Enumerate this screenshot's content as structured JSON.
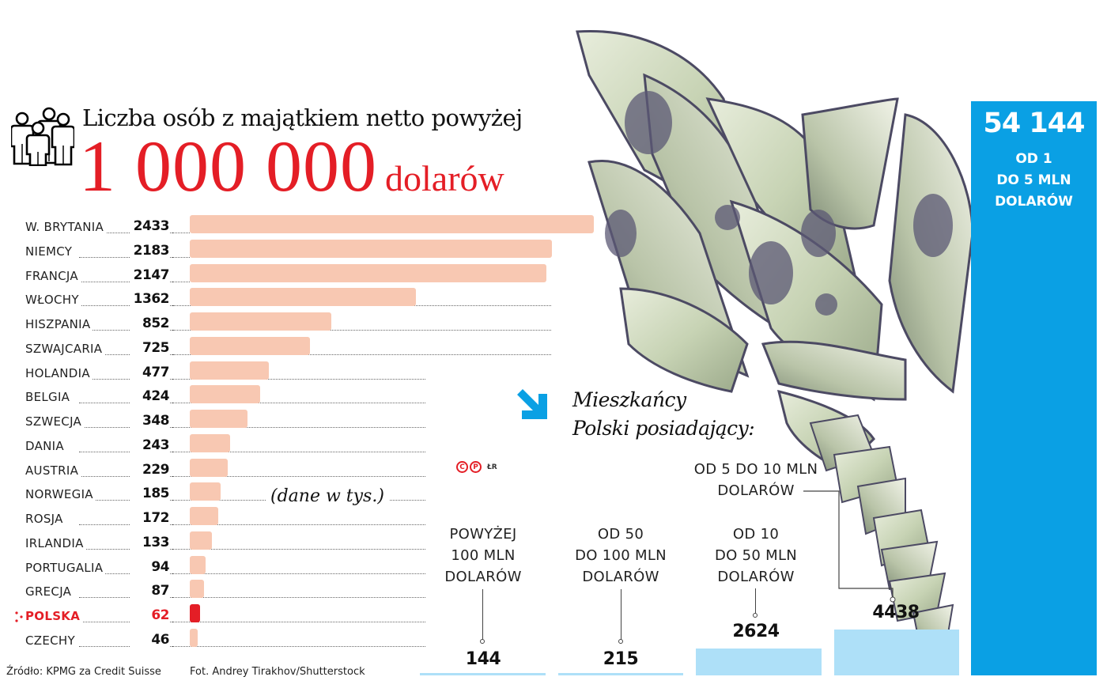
{
  "title": {
    "line1": "Liczba osób z majątkiem netto powyżej",
    "amount": "1 000 000",
    "unit": "dolarów",
    "icon": "people-group-icon"
  },
  "colors": {
    "accent_red": "#e41e26",
    "bar_salmon": "#f8c8b2",
    "blue": "#0aa0e4",
    "light_blue": "#aee0f8"
  },
  "countries": [
    {
      "name": "W. BRYTANIA",
      "value": "2433"
    },
    {
      "name": "NIEMCY",
      "value": "2183"
    },
    {
      "name": "FRANCJA",
      "value": "2147"
    },
    {
      "name": "WŁOCHY",
      "value": "1362"
    },
    {
      "name": "HISZPANIA",
      "value": "852"
    },
    {
      "name": "SZWAJCARIA",
      "value": "725"
    },
    {
      "name": "HOLANDIA",
      "value": "477"
    },
    {
      "name": "BELGIA",
      "value": "424"
    },
    {
      "name": "SZWECJA",
      "value": "348"
    },
    {
      "name": "DANIA",
      "value": "243"
    },
    {
      "name": "AUSTRIA",
      "value": "229"
    },
    {
      "name": "NORWEGIA",
      "value": "185"
    },
    {
      "name": "ROSJA",
      "value": "172"
    },
    {
      "name": "IRLANDIA",
      "value": "133"
    },
    {
      "name": "PORTUGALIA",
      "value": "94"
    },
    {
      "name": "GRECJA",
      "value": "87"
    },
    {
      "name": "POLSKA",
      "value": "62"
    },
    {
      "name": "CZECHY",
      "value": "46"
    }
  ],
  "units_note": "(dane w tys.)",
  "copyright": {
    "c": "C",
    "p": "P",
    "initials": "ŁR"
  },
  "source": "Źródło: KPMG za Credit Suisse",
  "photo_credit": "Fot. Andrey Tirakhov/Shutterstock",
  "poland": {
    "heading_line1": "Mieszkańcy",
    "heading_line2": "Polski posiadający:",
    "categories": [
      {
        "label": [
          "POWYŻEJ",
          "100 MLN",
          "DOLARÓW"
        ],
        "value": "144"
      },
      {
        "label": [
          "OD 50",
          "DO 100 MLN",
          "DOLARÓW"
        ],
        "value": "215"
      },
      {
        "label": [
          "OD 10",
          "DO 50 MLN",
          "DOLARÓW"
        ],
        "value": "2624"
      },
      {
        "label": [
          "OD 5 DO 10 MLN",
          "DOLARÓW"
        ],
        "value": "4438"
      },
      {
        "label": [
          "OD 1",
          "DO 5 MLN",
          "DOLARÓW"
        ],
        "value": "54 144"
      }
    ]
  },
  "chart_data": [
    {
      "type": "bar",
      "orientation": "horizontal",
      "title": "Liczba osób z majątkiem netto powyżej 1 000 000 dolarów",
      "subtitle": "(dane w tys.)",
      "categories": [
        "W. BRYTANIA",
        "NIEMCY",
        "FRANCJA",
        "WŁOCHY",
        "HISZPANIA",
        "SZWAJCARIA",
        "HOLANDIA",
        "BELGIA",
        "SZWECJA",
        "DANIA",
        "AUSTRIA",
        "NORWEGIA",
        "ROSJA",
        "IRLANDIA",
        "PORTUGALIA",
        "GRECJA",
        "POLSKA",
        "CZECHY"
      ],
      "values": [
        2433,
        2183,
        2147,
        1362,
        852,
        725,
        477,
        424,
        348,
        243,
        229,
        185,
        172,
        133,
        94,
        87,
        62,
        46
      ],
      "unit": "thousands of people",
      "highlight": "POLSKA",
      "source": "Źródło: KPMG za Credit Suisse"
    },
    {
      "type": "bar",
      "orientation": "vertical",
      "title": "Mieszkańcy Polski posiadający:",
      "categories": [
        "POWYŻEJ 100 MLN DOLARÓW",
        "OD 50 DO 100 MLN DOLARÓW",
        "OD 10 DO 50 MLN DOLARÓW",
        "OD 5 DO 10 MLN DOLARÓW",
        "OD 1 DO 5 MLN DOLARÓW"
      ],
      "values": [
        144,
        215,
        2624,
        4438,
        54144
      ],
      "unit": "people"
    }
  ]
}
